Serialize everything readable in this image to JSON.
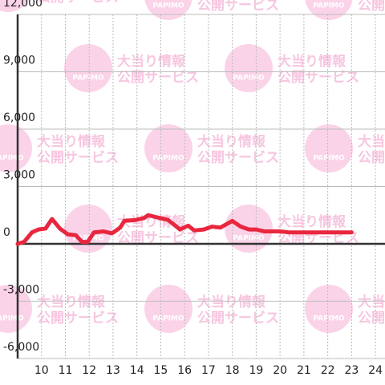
{
  "chart_data": {
    "type": "line",
    "watermark": {
      "logo": "PAPIMO",
      "line1": "大当り情報",
      "line2": "公開サービス"
    },
    "x": [
      9.0,
      9.27,
      9.6,
      9.87,
      10.17,
      10.44,
      10.77,
      11.1,
      11.44,
      11.7,
      11.94,
      12.2,
      12.6,
      12.96,
      13.3,
      13.47,
      13.97,
      14.3,
      14.47,
      14.8,
      15.3,
      15.66,
      15.8,
      16.15,
      16.4,
      16.8,
      17.15,
      17.5,
      18.0,
      18.35,
      18.7,
      19.0,
      19.35,
      20.0,
      20.37,
      23.0
    ],
    "series": [
      {
        "color": "#e8273f",
        "values": [
          0,
          100,
          600,
          750,
          800,
          1300,
          800,
          500,
          450,
          100,
          100,
          600,
          650,
          550,
          850,
          1200,
          1250,
          1350,
          1500,
          1400,
          1250,
          900,
          750,
          950,
          700,
          750,
          900,
          850,
          1200,
          900,
          750,
          750,
          650,
          650,
          600,
          600
        ]
      }
    ],
    "xlim": [
      9,
      24.4
    ],
    "xticks": [
      10,
      11,
      12,
      13,
      14,
      15,
      16,
      17,
      18,
      19,
      20,
      21,
      22,
      23,
      24
    ],
    "ylim": [
      -6000,
      12000
    ],
    "yticks": [
      {
        "value": -6000,
        "label": "-6,000"
      },
      {
        "value": -3000,
        "label": "-3,000"
      },
      0,
      {
        "value": 3000,
        "label": "3,000"
      },
      {
        "value": 6000,
        "label": "6,000"
      },
      {
        "value": 9000,
        "label": "9,000"
      },
      {
        "value": 12000,
        "label": "12,000"
      }
    ],
    "grid": true
  }
}
